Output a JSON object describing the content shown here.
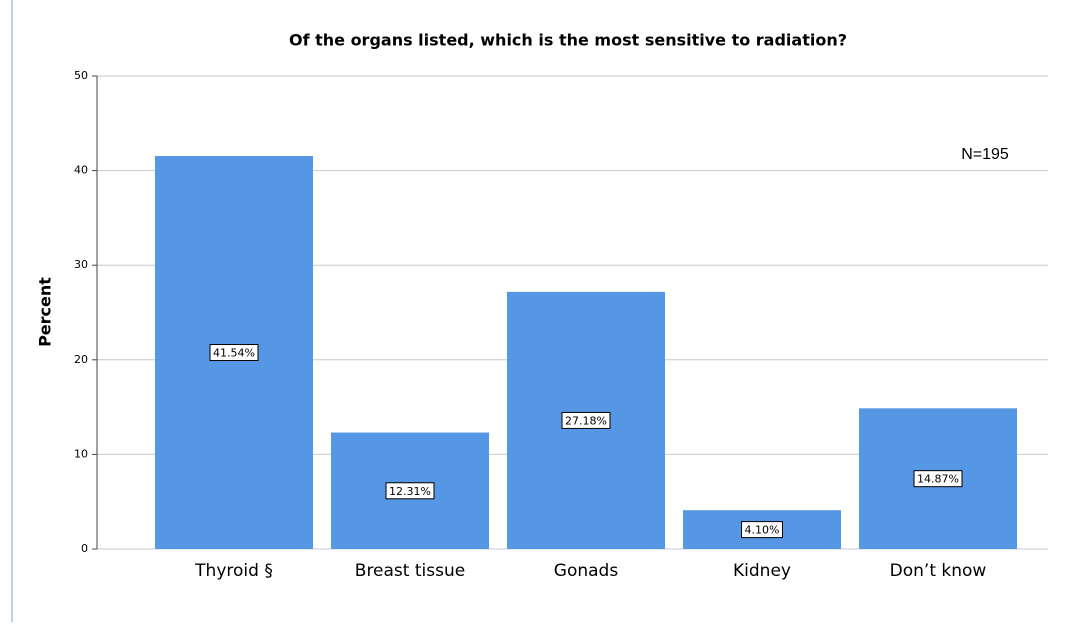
{
  "chart_data": {
    "type": "bar",
    "title": "Of the organs listed, which is the most sensitive to radiation?",
    "y_label": "Percent",
    "annotation": "N=195",
    "categories": [
      "Thyroid §",
      "Breast tissue",
      "Gonads",
      "Kidney",
      "Don’t know"
    ],
    "values": [
      41.54,
      12.31,
      27.18,
      4.1,
      14.87
    ],
    "value_labels": [
      "41.54%",
      "12.31%",
      "27.18%",
      "4.10%",
      "14.87%"
    ],
    "color": "#5596e5",
    "ylim": [
      0,
      50
    ],
    "yticks": [
      0,
      10,
      20,
      30,
      40,
      50
    ],
    "grid": true
  }
}
